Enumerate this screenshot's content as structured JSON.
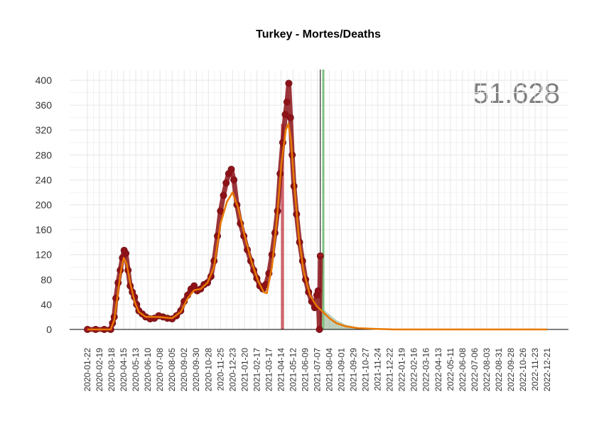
{
  "chart_data": {
    "type": "line",
    "title": "Turkey - Mortes/Deaths",
    "annotation": "51.628",
    "xlabel": "",
    "ylabel": "",
    "ylim": [
      0,
      400
    ],
    "y_ticks": [
      0,
      40,
      80,
      120,
      160,
      200,
      240,
      280,
      320,
      360,
      400
    ],
    "x_tick_labels": [
      "2020-01-22",
      "2020-02-19",
      "2020-03-18",
      "2020-04-15",
      "2020-05-13",
      "2020-06-10",
      "2020-07-08",
      "2020-08-05",
      "2020-09-02",
      "2020-09-30",
      "2020-10-28",
      "2020-11-25",
      "2020-12-23",
      "2021-01-20",
      "2021-02-17",
      "2021-03-17",
      "2021-04-14",
      "2021-05-12",
      "2021-06-09",
      "2021-07-07",
      "2021-08-04",
      "2021-09-01",
      "2021-09-29",
      "2021-10-27",
      "2021-11-24",
      "2021-12-22",
      "2022-01-19",
      "2022-02-16",
      "2022-03-16",
      "2022-04-13",
      "2022-05-11",
      "2022-06-08",
      "2022-07-06",
      "2022-08-03",
      "2022-08-31",
      "2022-09-28",
      "2022-10-26",
      "2022-11-23",
      "2022-12-21"
    ],
    "x_range": [
      "2020-01-22",
      "2022-12-21"
    ],
    "grid": true,
    "series": [
      {
        "role": "daily deaths (points)",
        "color": "#a01820",
        "points": [
          [
            "2020-01-22",
            0
          ],
          [
            "2020-02-10",
            0
          ],
          [
            "2020-03-01",
            0
          ],
          [
            "2020-03-16",
            0
          ],
          [
            "2020-03-20",
            10
          ],
          [
            "2020-03-24",
            20
          ],
          [
            "2020-03-28",
            50
          ],
          [
            "2020-04-02",
            75
          ],
          [
            "2020-04-07",
            95
          ],
          [
            "2020-04-12",
            115
          ],
          [
            "2020-04-16",
            127
          ],
          [
            "2020-04-20",
            122
          ],
          [
            "2020-04-25",
            95
          ],
          [
            "2020-04-30",
            70
          ],
          [
            "2020-05-05",
            60
          ],
          [
            "2020-05-10",
            52
          ],
          [
            "2020-05-15",
            40
          ],
          [
            "2020-05-20",
            30
          ],
          [
            "2020-05-28",
            25
          ],
          [
            "2020-06-05",
            20
          ],
          [
            "2020-06-15",
            17
          ],
          [
            "2020-06-25",
            18
          ],
          [
            "2020-07-05",
            22
          ],
          [
            "2020-07-15",
            20
          ],
          [
            "2020-07-25",
            18
          ],
          [
            "2020-08-05",
            17
          ],
          [
            "2020-08-15",
            22
          ],
          [
            "2020-08-25",
            30
          ],
          [
            "2020-09-02",
            45
          ],
          [
            "2020-09-10",
            55
          ],
          [
            "2020-09-18",
            65
          ],
          [
            "2020-09-25",
            70
          ],
          [
            "2020-10-02",
            62
          ],
          [
            "2020-10-10",
            65
          ],
          [
            "2020-10-18",
            72
          ],
          [
            "2020-10-26",
            75
          ],
          [
            "2020-11-03",
            85
          ],
          [
            "2020-11-10",
            110
          ],
          [
            "2020-11-18",
            150
          ],
          [
            "2020-11-25",
            190
          ],
          [
            "2020-12-02",
            215
          ],
          [
            "2020-12-08",
            235
          ],
          [
            "2020-12-14",
            250
          ],
          [
            "2020-12-20",
            257
          ],
          [
            "2020-12-26",
            240
          ],
          [
            "2021-01-02",
            200
          ],
          [
            "2021-01-10",
            170
          ],
          [
            "2021-01-18",
            150
          ],
          [
            "2021-01-26",
            128
          ],
          [
            "2021-02-03",
            110
          ],
          [
            "2021-02-10",
            95
          ],
          [
            "2021-02-17",
            82
          ],
          [
            "2021-02-24",
            70
          ],
          [
            "2021-03-03",
            65
          ],
          [
            "2021-03-10",
            72
          ],
          [
            "2021-03-17",
            90
          ],
          [
            "2021-03-24",
            120
          ],
          [
            "2021-03-31",
            155
          ],
          [
            "2021-04-06",
            190
          ],
          [
            "2021-04-12",
            250
          ],
          [
            "2021-04-18",
            300
          ],
          [
            "2021-04-24",
            345
          ],
          [
            "2021-04-28",
            365
          ],
          [
            "2021-05-02",
            395
          ],
          [
            "2021-05-06",
            340
          ],
          [
            "2021-05-10",
            280
          ],
          [
            "2021-05-14",
            230
          ],
          [
            "2021-05-20",
            185
          ],
          [
            "2021-05-27",
            140
          ],
          [
            "2021-06-03",
            110
          ],
          [
            "2021-06-10",
            80
          ],
          [
            "2021-06-17",
            60
          ],
          [
            "2021-06-24",
            45
          ],
          [
            "2021-07-01",
            35
          ],
          [
            "2021-07-06",
            55
          ],
          [
            "2021-07-09",
            62
          ],
          [
            "2021-07-12",
            0
          ],
          [
            "2021-07-14",
            118
          ]
        ]
      },
      {
        "role": "smoothed (line)",
        "color": "#e87800",
        "points": [
          [
            "2020-01-22",
            0
          ],
          [
            "2020-03-16",
            0
          ],
          [
            "2020-03-24",
            15
          ],
          [
            "2020-04-01",
            55
          ],
          [
            "2020-04-08",
            92
          ],
          [
            "2020-04-15",
            115
          ],
          [
            "2020-04-22",
            105
          ],
          [
            "2020-04-30",
            75
          ],
          [
            "2020-05-10",
            45
          ],
          [
            "2020-05-20",
            28
          ],
          [
            "2020-06-05",
            20
          ],
          [
            "2020-07-05",
            20
          ],
          [
            "2020-08-05",
            18
          ],
          [
            "2020-08-25",
            28
          ],
          [
            "2020-09-10",
            50
          ],
          [
            "2020-09-25",
            63
          ],
          [
            "2020-10-10",
            65
          ],
          [
            "2020-10-26",
            75
          ],
          [
            "2020-11-10",
            100
          ],
          [
            "2020-11-25",
            170
          ],
          [
            "2020-12-10",
            205
          ],
          [
            "2020-12-23",
            220
          ],
          [
            "2021-01-05",
            195
          ],
          [
            "2021-01-20",
            150
          ],
          [
            "2021-02-05",
            108
          ],
          [
            "2021-02-20",
            78
          ],
          [
            "2021-03-05",
            60
          ],
          [
            "2021-03-12",
            58
          ],
          [
            "2021-03-24",
            100
          ],
          [
            "2021-04-05",
            180
          ],
          [
            "2021-04-15",
            265
          ],
          [
            "2021-04-25",
            320
          ],
          [
            "2021-05-01",
            330
          ],
          [
            "2021-05-07",
            305
          ],
          [
            "2021-05-15",
            230
          ],
          [
            "2021-05-25",
            150
          ],
          [
            "2021-06-05",
            95
          ],
          [
            "2021-06-20",
            55
          ],
          [
            "2021-07-05",
            38
          ],
          [
            "2021-07-20",
            28
          ],
          [
            "2021-08-04",
            18
          ],
          [
            "2021-08-20",
            10
          ],
          [
            "2021-09-10",
            5
          ],
          [
            "2021-10-10",
            2
          ],
          [
            "2021-11-15",
            1
          ],
          [
            "2022-01-01",
            0
          ],
          [
            "2022-12-21",
            0
          ]
        ]
      },
      {
        "role": "projection band (upper)",
        "color": "#8faf8f",
        "points": [
          [
            "2021-07-14",
            38
          ],
          [
            "2021-08-01",
            26
          ],
          [
            "2021-08-20",
            15
          ],
          [
            "2021-09-10",
            8
          ],
          [
            "2021-10-10",
            3
          ],
          [
            "2021-11-15",
            1
          ],
          [
            "2022-01-01",
            0
          ]
        ]
      }
    ],
    "highlight_bar": {
      "from": "2021-04-14",
      "to": "2021-04-21",
      "value": 330,
      "color": "#c0303a"
    },
    "vertical_lines": [
      {
        "date": "2021-07-14",
        "color": "#000000"
      },
      {
        "date": "2021-07-21",
        "color": "#7fbf7f"
      }
    ]
  }
}
